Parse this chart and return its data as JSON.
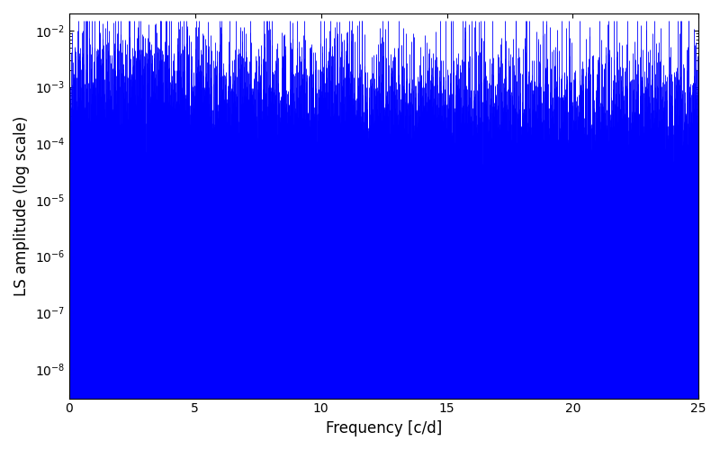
{
  "title": "",
  "xlabel": "Frequency [c/d]",
  "ylabel": "LS amplitude (log scale)",
  "xlim": [
    0,
    25
  ],
  "ylim": [
    3e-09,
    0.02
  ],
  "line_color": "#0000ff",
  "line_width": 0.6,
  "background_color": "#ffffff",
  "figsize": [
    8.0,
    5.0
  ],
  "dpi": 100,
  "seed": 42,
  "n_freqs": 8000,
  "freq_max": 25.0
}
